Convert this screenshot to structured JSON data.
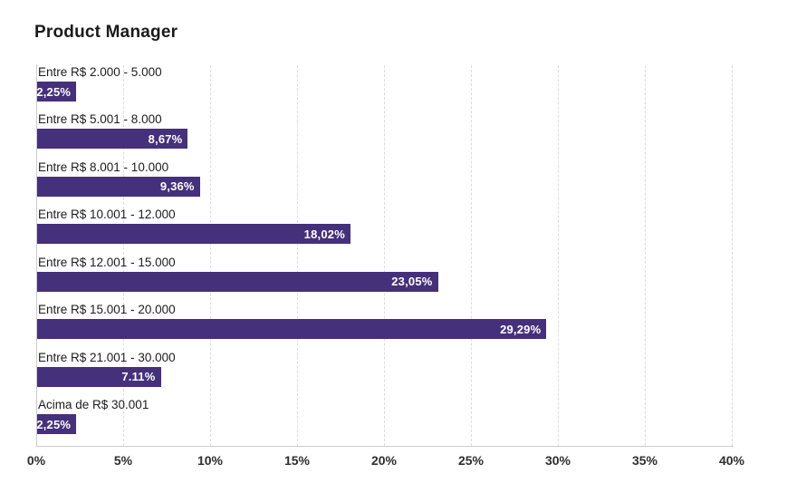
{
  "chart_data": {
    "type": "bar",
    "orientation": "horizontal",
    "title": "Product Manager",
    "categories": [
      "Entre R$ 2.000 - 5.000",
      "Entre R$ 5.001 - 8.000",
      "Entre R$ 8.001 - 10.000",
      "Entre R$ 10.001 - 12.000",
      "Entre R$ 12.001 - 15.000",
      "Entre R$ 15.001 - 20.000",
      "Entre R$ 21.001 - 30.000",
      "Acima de R$ 30.001"
    ],
    "values": [
      2.25,
      8.67,
      9.36,
      18.02,
      23.05,
      29.29,
      7.11,
      2.25
    ],
    "value_labels": [
      "2,25%",
      "8,67%",
      "9,36%",
      "18,02%",
      "23,05%",
      "29,29%",
      "7.11%",
      "2,25%"
    ],
    "xlabel": "",
    "ylabel": "",
    "xlim": [
      0,
      40
    ],
    "x_tick_values": [
      0,
      5,
      10,
      15,
      20,
      25,
      30,
      35,
      40
    ],
    "x_tick_labels": [
      "0%",
      "5%",
      "10%",
      "15%",
      "20%",
      "25%",
      "30%",
      "35%",
      "40%"
    ],
    "grid": "vertical-dashed",
    "legend": "none",
    "colors": {
      "bar": "#45307B",
      "value_text": "#ffffff",
      "category_text": "#1c1c1c",
      "tick_text": "#2e2e2e",
      "gridline": "#dcdcdc",
      "axis": "#cccccc",
      "background": "#ffffff",
      "title_text": "#1a1a1a"
    }
  }
}
